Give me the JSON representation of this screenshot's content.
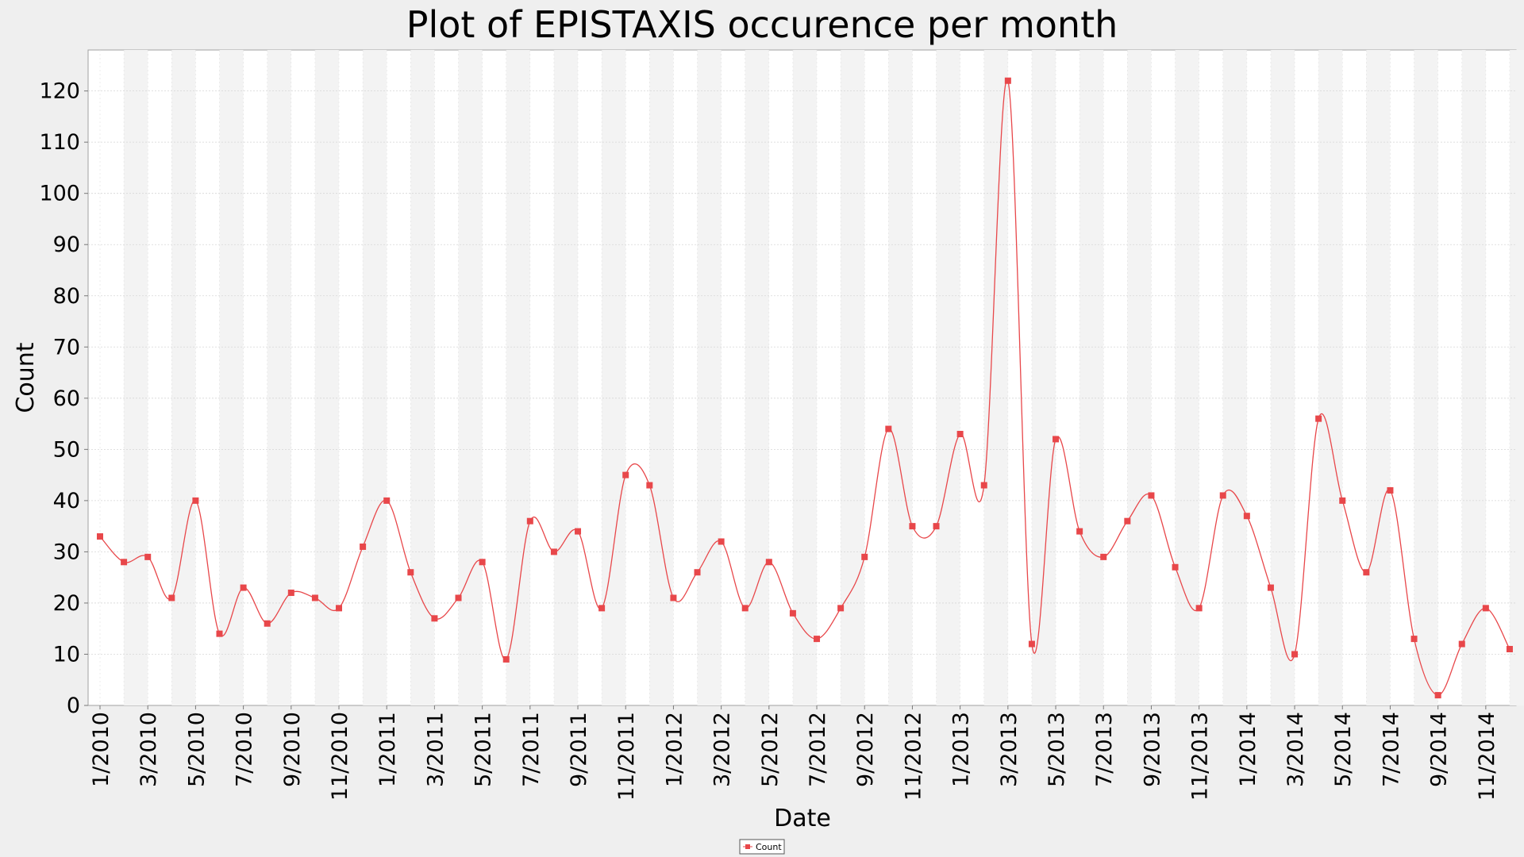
{
  "chart_data": {
    "type": "line",
    "title": "Plot of EPISTAXIS occurence per month",
    "xlabel": "Date",
    "ylabel": "Count",
    "ylim": [
      0,
      128
    ],
    "yticks": [
      0,
      10,
      20,
      30,
      40,
      50,
      60,
      70,
      80,
      90,
      100,
      110,
      120
    ],
    "x_tick_labels": [
      "1/2010",
      "3/2010",
      "5/2010",
      "7/2010",
      "9/2010",
      "11/2010",
      "1/2011",
      "3/2011",
      "5/2011",
      "7/2011",
      "9/2011",
      "11/2011",
      "1/2012",
      "3/2012",
      "5/2012",
      "7/2012",
      "9/2012",
      "11/2012",
      "1/2013",
      "3/2013",
      "5/2013",
      "7/2013",
      "9/2013",
      "11/2013",
      "1/2014",
      "3/2014",
      "5/2014",
      "7/2014",
      "9/2014",
      "11/2014"
    ],
    "grid": true,
    "legend_position": "bottom-center",
    "colors": {
      "series": "#e8474a",
      "background": "#efefef",
      "plot": "#ffffff",
      "band": "#f3f3f3"
    },
    "x": [
      "1/2010",
      "2/2010",
      "3/2010",
      "4/2010",
      "5/2010",
      "6/2010",
      "7/2010",
      "8/2010",
      "9/2010",
      "10/2010",
      "11/2010",
      "12/2010",
      "1/2011",
      "2/2011",
      "3/2011",
      "4/2011",
      "5/2011",
      "6/2011",
      "7/2011",
      "8/2011",
      "9/2011",
      "10/2011",
      "11/2011",
      "12/2011",
      "1/2012",
      "2/2012",
      "3/2012",
      "4/2012",
      "5/2012",
      "6/2012",
      "7/2012",
      "8/2012",
      "9/2012",
      "10/2012",
      "11/2012",
      "12/2012",
      "1/2013",
      "2/2013",
      "3/2013",
      "4/2013",
      "5/2013",
      "6/2013",
      "7/2013",
      "8/2013",
      "9/2013",
      "10/2013",
      "11/2013",
      "12/2013",
      "1/2014",
      "2/2014",
      "3/2014",
      "4/2014",
      "5/2014",
      "6/2014",
      "7/2014",
      "8/2014",
      "9/2014",
      "10/2014",
      "11/2014",
      "12/2014"
    ],
    "series": [
      {
        "name": "Count",
        "values": [
          33,
          28,
          29,
          21,
          40,
          14,
          23,
          16,
          22,
          21,
          19,
          31,
          40,
          26,
          17,
          21,
          28,
          9,
          36,
          30,
          34,
          19,
          45,
          43,
          21,
          26,
          32,
          19,
          28,
          18,
          13,
          19,
          29,
          54,
          35,
          35,
          53,
          43,
          122,
          12,
          52,
          34,
          29,
          36,
          41,
          27,
          19,
          41,
          37,
          23,
          10,
          56,
          40,
          26,
          42,
          13,
          2,
          12,
          19,
          11
        ]
      }
    ]
  }
}
